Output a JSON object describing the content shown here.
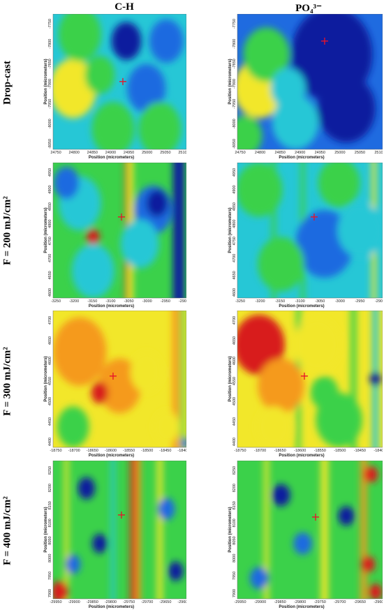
{
  "columns": [
    "C-H",
    "PO₄³⁻"
  ],
  "rows": [
    "Drop-cast",
    "F = 200 mJ/cm²",
    "F = 300 mJ/cm²",
    "F = 400 mJ/cm²"
  ],
  "x_axis_label": "Position (micrometers)",
  "y_axis_label": "Position (micrometers)",
  "marker_symbol": "+",
  "colormap": [
    "#0a1f9e",
    "#1f6be0",
    "#26c7d6",
    "#3bd14a",
    "#f2e72a",
    "#f59a1f",
    "#d81e1e"
  ],
  "marker_color": "#e8132a",
  "panels": [
    {
      "xticks": [
        "24750",
        "24800",
        "24850",
        "24900",
        "24950",
        "25000",
        "25050",
        "25100"
      ],
      "yticks": [
        "-7750",
        "-7800",
        "-7850",
        "-7900",
        "-7950",
        "-8000",
        "-8050"
      ]
    },
    {
      "xticks": [
        "24750",
        "24800",
        "24850",
        "24900",
        "24950",
        "25000",
        "25050",
        "25100"
      ],
      "yticks": [
        "-7750",
        "-7800",
        "-7850",
        "-7900",
        "-7950",
        "-8000",
        "-8050"
      ]
    },
    {
      "xticks": [
        "-3250",
        "-3200",
        "-3150",
        "-3100",
        "-3050",
        "-3000",
        "-2950",
        "-2900"
      ],
      "yticks": [
        "4950",
        "4900",
        "4850",
        "4800",
        "4750",
        "4700",
        "4650",
        "4600"
      ]
    },
    {
      "xticks": [
        "-3250",
        "-3200",
        "-3150",
        "-3100",
        "-3050",
        "-3000",
        "-2950",
        "-2900"
      ],
      "yticks": [
        "4950",
        "4900",
        "4850",
        "4800",
        "4750",
        "4700",
        "4650",
        "4600"
      ]
    },
    {
      "xticks": [
        "-18750",
        "-18700",
        "-18650",
        "-18600",
        "-18550",
        "-18500",
        "-18450",
        "-18400"
      ],
      "yticks": [
        "4700",
        "4650",
        "4600",
        "4550",
        "4500",
        "4450",
        "4400"
      ]
    },
    {
      "xticks": [
        "-18750",
        "-18700",
        "-18650",
        "-18600",
        "-18550",
        "-18500",
        "-18450",
        "-18400"
      ],
      "yticks": [
        "4700",
        "4650",
        "4600",
        "4550",
        "4500",
        "4450",
        "4400"
      ]
    },
    {
      "xticks": [
        "-29950",
        "-29900",
        "-29850",
        "-29800",
        "-29750",
        "-29700",
        "-29650",
        "-29600"
      ],
      "yticks": [
        "8250",
        "8200",
        "8150",
        "8100",
        "8050",
        "8000",
        "7950",
        "7900"
      ]
    },
    {
      "xticks": [
        "-29950",
        "-29900",
        "-29850",
        "-29800",
        "-29750",
        "-29700",
        "-29650",
        "-29600"
      ],
      "yticks": [
        "8250",
        "8200",
        "8150",
        "8100",
        "8050",
        "8000",
        "7950",
        "7900"
      ]
    }
  ]
}
